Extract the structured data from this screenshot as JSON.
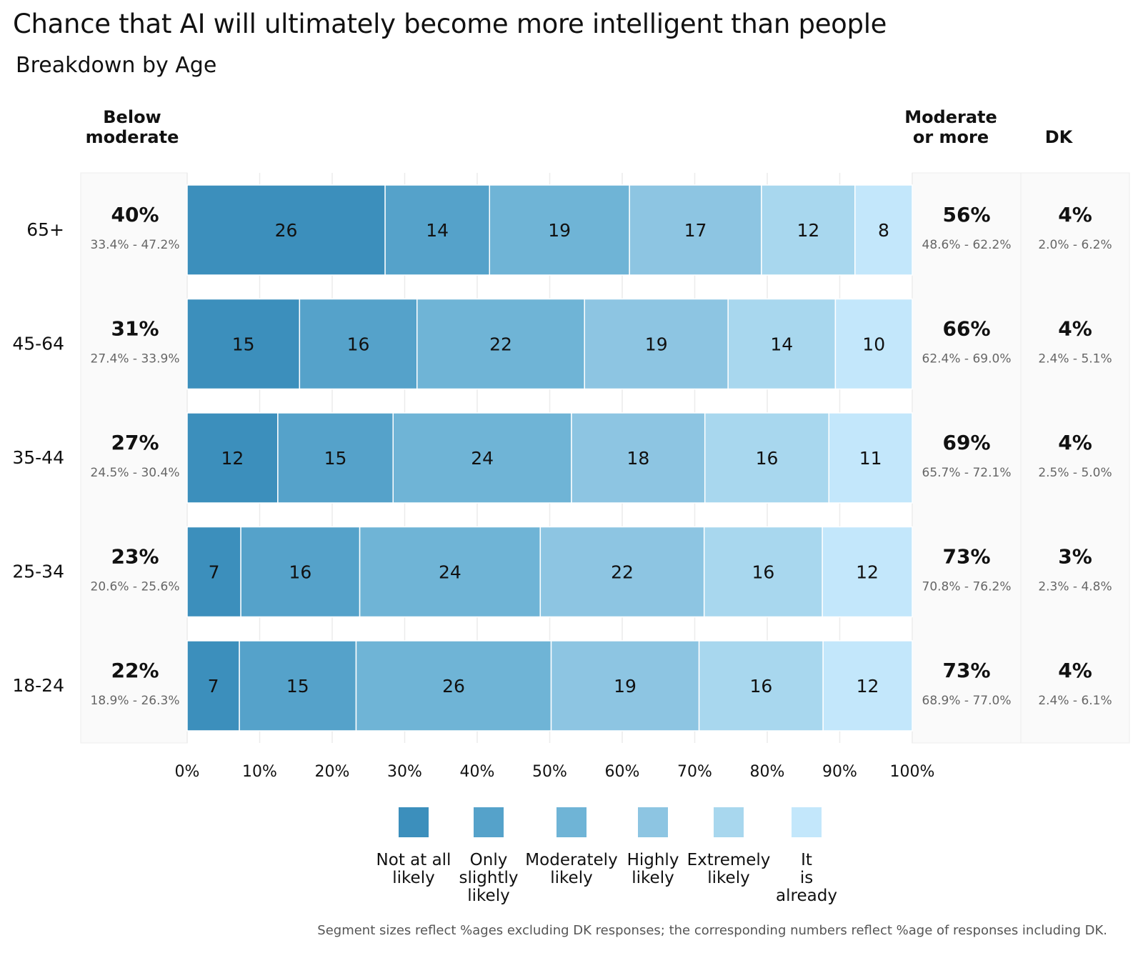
{
  "title": "Chance that AI will ultimately become more intelligent than people",
  "subtitle": "Breakdown by Age",
  "column_headers": {
    "below": "Below\nmoderate",
    "moderate_plus": "Moderate\nor more",
    "dk": "DK"
  },
  "footnote": "Segment sizes reflect %ages excluding DK responses; the corresponding numbers reflect %age of responses including DK.",
  "colors": [
    "#3c8fbc",
    "#55a2ca",
    "#6fb4d6",
    "#8dc5e2",
    "#a8d7ee",
    "#c3e7fb"
  ],
  "chart_data": {
    "type": "bar",
    "orientation": "horizontal-stacked",
    "categories": [
      "65+",
      "45-64",
      "35-44",
      "25-34",
      "18-24"
    ],
    "series": [
      {
        "name": "Not at all likely",
        "values": [
          26,
          15,
          12,
          7,
          7
        ]
      },
      {
        "name": "Only slightly likely",
        "values": [
          14,
          16,
          15,
          16,
          15
        ]
      },
      {
        "name": "Moderately likely",
        "values": [
          19,
          22,
          24,
          24,
          26
        ]
      },
      {
        "name": "Highly likely",
        "values": [
          17,
          19,
          18,
          22,
          19
        ]
      },
      {
        "name": "Extremely likely",
        "values": [
          12,
          14,
          16,
          16,
          16
        ]
      },
      {
        "name": "It is already",
        "values": [
          8,
          10,
          11,
          12,
          12
        ]
      }
    ],
    "segment_fractions": [
      [
        0.273,
        0.144,
        0.193,
        0.182,
        0.129,
        0.079
      ],
      [
        0.155,
        0.162,
        0.231,
        0.198,
        0.148,
        0.106
      ],
      [
        0.125,
        0.159,
        0.246,
        0.184,
        0.171,
        0.115
      ],
      [
        0.074,
        0.164,
        0.249,
        0.226,
        0.163,
        0.124
      ],
      [
        0.072,
        0.161,
        0.269,
        0.204,
        0.171,
        0.123
      ]
    ],
    "below_moderate": [
      {
        "pct": "40%",
        "ci": "33.4% - 47.2%"
      },
      {
        "pct": "31%",
        "ci": "27.4% - 33.9%"
      },
      {
        "pct": "27%",
        "ci": "24.5% - 30.4%"
      },
      {
        "pct": "23%",
        "ci": "20.6% - 25.6%"
      },
      {
        "pct": "22%",
        "ci": "18.9% - 26.3%"
      }
    ],
    "moderate_or_more": [
      {
        "pct": "56%",
        "ci": "48.6% - 62.2%"
      },
      {
        "pct": "66%",
        "ci": "62.4% - 69.0%"
      },
      {
        "pct": "69%",
        "ci": "65.7% - 72.1%"
      },
      {
        "pct": "73%",
        "ci": "70.8% - 76.2%"
      },
      {
        "pct": "73%",
        "ci": "68.9% - 77.0%"
      }
    ],
    "dk": [
      {
        "pct": "4%",
        "ci": "2.0% - 6.2%"
      },
      {
        "pct": "4%",
        "ci": "2.4% - 5.1%"
      },
      {
        "pct": "4%",
        "ci": "2.5% - 5.0%"
      },
      {
        "pct": "3%",
        "ci": "2.3% - 4.8%"
      },
      {
        "pct": "4%",
        "ci": "2.4% - 6.1%"
      }
    ],
    "x_ticks": [
      "0%",
      "10%",
      "20%",
      "30%",
      "40%",
      "50%",
      "60%",
      "70%",
      "80%",
      "90%",
      "100%"
    ],
    "xlim": [
      0,
      100
    ],
    "grid": true,
    "legend_position": "bottom"
  }
}
